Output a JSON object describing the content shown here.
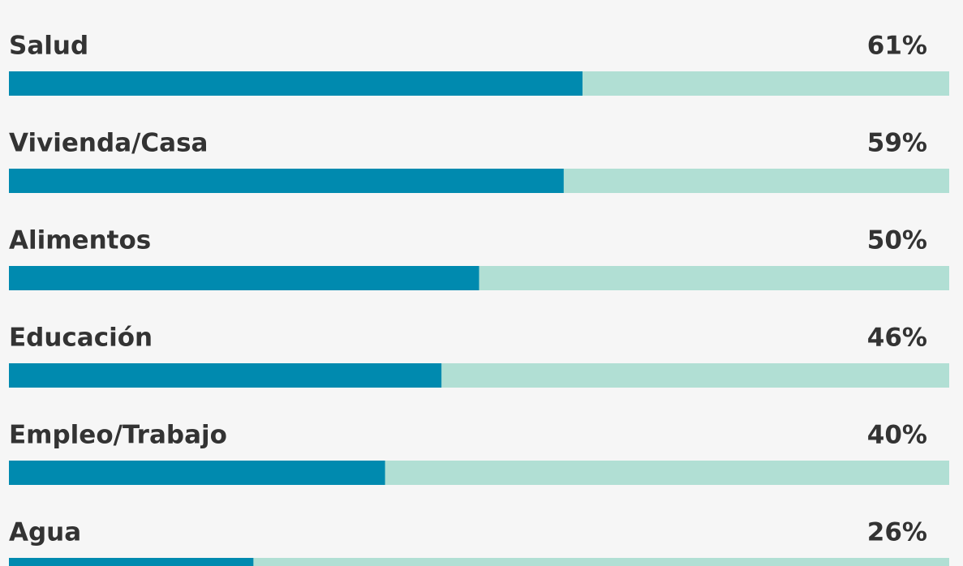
{
  "chart_data": {
    "type": "progress",
    "categories": [
      "Salud",
      "Vivienda/Casa",
      "Alimentos",
      "Educación",
      "Empleo/Trabajo",
      "Agua"
    ],
    "values": [
      61,
      59,
      50,
      46,
      40,
      26
    ],
    "value_labels": [
      "61%",
      "59%",
      "50%",
      "46%",
      "40%",
      "26%"
    ],
    "color": "#008aaf",
    "track_color": "#b1dfd4",
    "xlim": [
      0,
      100
    ]
  }
}
